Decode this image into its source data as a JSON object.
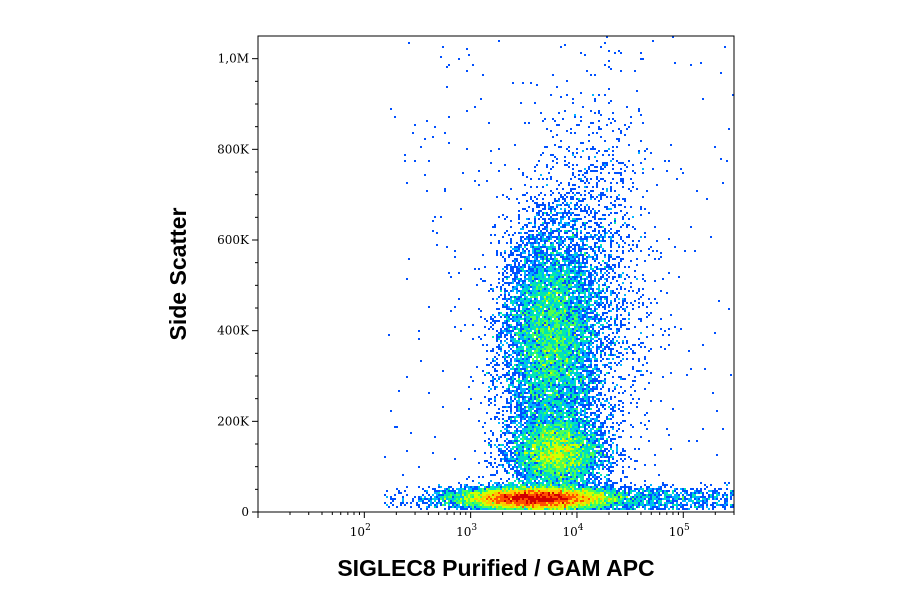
{
  "chart_data": {
    "type": "scatter",
    "subtype": "flow-cytometry density dot plot",
    "xlabel": "SIGLEC8 Purified / GAM APC",
    "ylabel": "Side Scatter",
    "x_scale": "log",
    "x_range": [
      10,
      300000
    ],
    "y_range": [
      0,
      1050000
    ],
    "x_ticks": [
      {
        "value": 100,
        "base": "10",
        "exp": "2"
      },
      {
        "value": 1000,
        "base": "10",
        "exp": "3"
      },
      {
        "value": 10000,
        "base": "10",
        "exp": "4"
      },
      {
        "value": 100000,
        "base": "10",
        "exp": "5"
      }
    ],
    "y_ticks": [
      {
        "value": 0,
        "label": "0"
      },
      {
        "value": 200000,
        "label": "200K"
      },
      {
        "value": 400000,
        "label": "400K"
      },
      {
        "value": 600000,
        "label": "600K"
      },
      {
        "value": 800000,
        "label": "800K"
      },
      {
        "value": 1000000,
        "label": "1,0M"
      }
    ],
    "density_colors": [
      "#0000e0",
      "#0050ff",
      "#00b4ff",
      "#00e6b4",
      "#50ff50",
      "#d2ff00",
      "#ffc800",
      "#ff5000",
      "#d20000"
    ],
    "populations": [
      {
        "x_center": 4000,
        "y_center": 30000,
        "x_spread_decades": 0.35,
        "y_spread": 12000,
        "weight": 0.4
      },
      {
        "x_center": 6500,
        "y_center": 130000,
        "x_spread_decades": 0.22,
        "y_spread": 40000,
        "weight": 0.18
      },
      {
        "x_center": 5500,
        "y_center": 380000,
        "x_spread_decades": 0.22,
        "y_spread": 130000,
        "weight": 0.32
      },
      {
        "x_center": 15000,
        "y_center": 500000,
        "x_spread_decades": 0.25,
        "y_spread": 200000,
        "weight": 0.06
      },
      {
        "x_center": 30000,
        "y_center": 30000,
        "x_spread_decades": 0.6,
        "y_spread": 15000,
        "weight": 0.04
      }
    ],
    "grid": false,
    "legend": "none"
  }
}
